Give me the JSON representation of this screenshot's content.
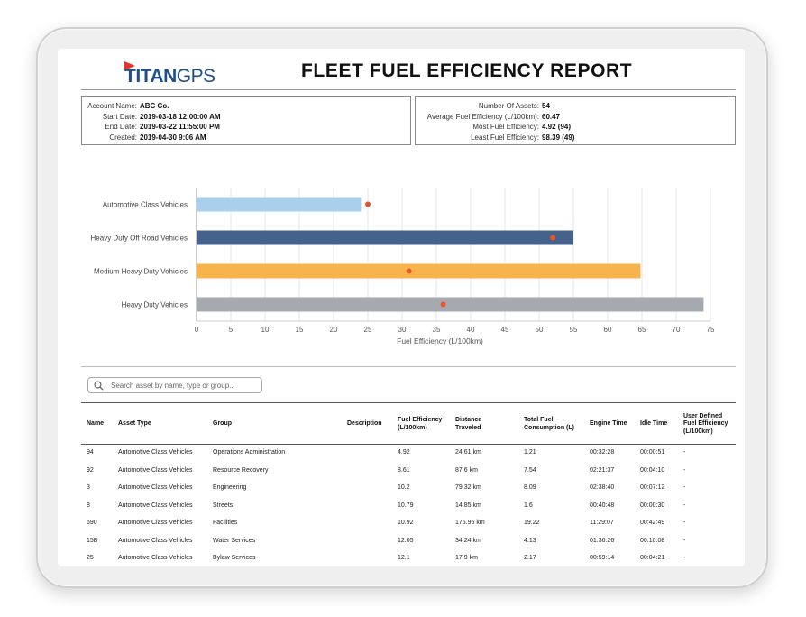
{
  "brand": {
    "logo_bold": "TITAN",
    "logo_light": "GPS"
  },
  "report_title": "FLEET FUEL EFFICIENCY REPORT",
  "account_info": [
    {
      "label": "Account Name:",
      "value": "ABC Co."
    },
    {
      "label": "Start Date:",
      "value": "2019-03-18 12:00:00 AM"
    },
    {
      "label": "End Date:",
      "value": "2019-03-22 11:55:00 PM"
    },
    {
      "label": "Created:",
      "value": "2019-04-30 9:06 AM"
    }
  ],
  "summary_info": [
    {
      "label": "Number Of Assets:",
      "value": "54"
    },
    {
      "label": "Average Fuel Efficiency (L/100km):",
      "value": "60.47"
    },
    {
      "label": "Most Fuel Efficiency:",
      "value": "4.92 (94)"
    },
    {
      "label": "Least Fuel Efficiency:",
      "value": "98.39 (49)"
    }
  ],
  "chart_data": {
    "type": "bar",
    "orientation": "horizontal",
    "categories": [
      "Automotive Class Vehicles",
      "Heavy Duty Off Road Vehicles",
      "Medium Heavy Duty Vehicles",
      "Heavy Duty Vehicles"
    ],
    "values": [
      24,
      55,
      64.8,
      74
    ],
    "markers": [
      25,
      52,
      31,
      36
    ],
    "colors": [
      "#a9cfec",
      "#45628a",
      "#f8b34d",
      "#a5aab0"
    ],
    "marker_color": "#e8552a",
    "xlabel": "Fuel Efficiency (L/100km)",
    "xlim": [
      0,
      75
    ],
    "xticks": [
      0,
      5,
      10,
      15,
      20,
      25,
      30,
      35,
      40,
      45,
      50,
      55,
      60,
      65,
      70,
      75
    ],
    "grid": true
  },
  "search": {
    "placeholder": "Search asset by name, type or group..."
  },
  "table": {
    "headers": [
      "Name",
      "Asset Type",
      "Group",
      "Description",
      "Fuel Efficiency (L/100km)",
      "Distance Traveled",
      "Total Fuel Consumption (L)",
      "Engine Time",
      "Idle Time",
      "User Defined Fuel Efficiency (L/100km)"
    ],
    "rows": [
      [
        "94",
        "Automotive Class Vehicles",
        "Operations Administration",
        "",
        "4.92",
        "24.61 km",
        "1.21",
        "00:32:28",
        "00:00:51",
        "-"
      ],
      [
        "92",
        "Automotive Class Vehicles",
        "Resource Recovery",
        "",
        "8.61",
        "87.6 km",
        "7.54",
        "02:21:37",
        "00:04:10",
        "-"
      ],
      [
        "3",
        "Automotive Class Vehicles",
        "Engineering",
        "",
        "10.2",
        "79.32 km",
        "8.09",
        "02:38:40",
        "00:07:12",
        "-"
      ],
      [
        "8",
        "Automotive Class Vehicles",
        "Streets",
        "",
        "10.79",
        "14.85 km",
        "1.6",
        "00:40:48",
        "00:00:30",
        "-"
      ],
      [
        "690",
        "Automotive Class Vehicles",
        "Facilities",
        "",
        "10.92",
        "175.96 km",
        "19.22",
        "11:29:07",
        "00:42:49",
        "-"
      ],
      [
        "15B",
        "Automotive Class Vehicles",
        "Water Services",
        "",
        "12.05",
        "34.24 km",
        "4.13",
        "01:36:26",
        "00:10:08",
        "-"
      ],
      [
        "25",
        "Automotive Class Vehicles",
        "Bylaw Services",
        "",
        "12.1",
        "17.9 km",
        "2.17",
        "00:59:14",
        "00:04:21",
        "-"
      ]
    ]
  },
  "icons": {
    "search": "search-icon",
    "logo_flag": "flag-icon"
  }
}
